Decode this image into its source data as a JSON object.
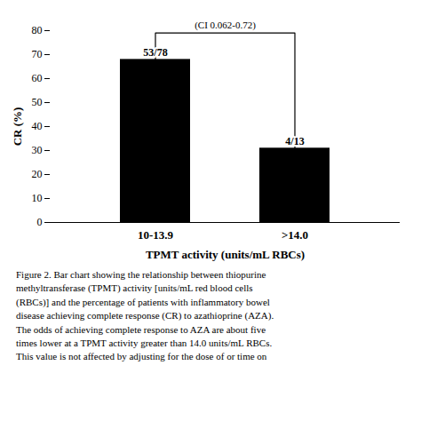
{
  "chart_data": {
    "type": "bar",
    "categories": [
      "10-13.9",
      ">14.0"
    ],
    "values": [
      68,
      31
    ],
    "color": "#000000",
    "xlabel": "TPMT activity (units/mL RBCs)",
    "ylabel": "CR (%)",
    "ylim": [
      0,
      80
    ],
    "yticks": [
      0,
      10,
      20,
      30,
      40,
      50,
      60,
      70,
      80
    ],
    "grid": false,
    "annotations": [
      {
        "type": "bar_label",
        "x": "10-13.9",
        "text": "53/78"
      },
      {
        "type": "bar_label",
        "x": ">14.0",
        "text": "4/13"
      },
      {
        "type": "bracket",
        "from": "10-13.9",
        "to": ">14.0",
        "y": 79,
        "text": "(CI 0.062-0.72)"
      }
    ],
    "caption": [
      "Figure 2.  Bar chart showing the relationship between thiopurine",
      "methyltransferase (TPMT) activity [units/mL red blood cells",
      "(RBCs)] and the percentage of patients with inflammatory bowel",
      "disease achieving complete response (CR) to azathioprine (AZA).",
      "The odds of achieving complete response to AZA are about five",
      "times lower at a TPMT activity greater than 14.0 units/mL RBCs.",
      "This value is not affected by adjusting for the dose of or time on"
    ]
  }
}
